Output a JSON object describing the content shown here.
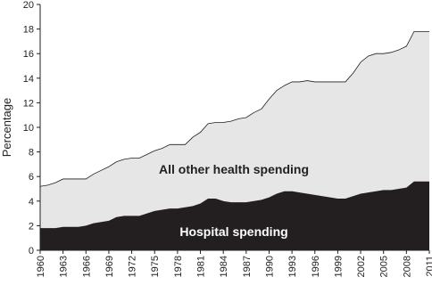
{
  "chart_data": {
    "type": "stacked-area",
    "y_label": "Percentage",
    "x": [
      1960,
      1961,
      1962,
      1963,
      1964,
      1965,
      1966,
      1967,
      1968,
      1969,
      1970,
      1971,
      1972,
      1973,
      1974,
      1975,
      1976,
      1977,
      1978,
      1979,
      1980,
      1981,
      1982,
      1983,
      1984,
      1985,
      1986,
      1987,
      1988,
      1989,
      1990,
      1991,
      1992,
      1993,
      1994,
      1995,
      1996,
      1997,
      1998,
      1999,
      2000,
      2001,
      2002,
      2003,
      2004,
      2005,
      2006,
      2007,
      2008,
      2009,
      2010,
      2011
    ],
    "series": [
      {
        "name": "Hospital spending",
        "color": "#231f20",
        "values": [
          1.8,
          1.8,
          1.8,
          1.9,
          1.9,
          1.9,
          2.0,
          2.2,
          2.3,
          2.4,
          2.7,
          2.8,
          2.8,
          2.8,
          3.0,
          3.2,
          3.3,
          3.4,
          3.4,
          3.5,
          3.6,
          3.8,
          4.2,
          4.2,
          4.0,
          3.9,
          3.9,
          3.9,
          4.0,
          4.1,
          4.3,
          4.6,
          4.8,
          4.8,
          4.7,
          4.6,
          4.5,
          4.4,
          4.3,
          4.2,
          4.2,
          4.4,
          4.6,
          4.7,
          4.8,
          4.9,
          4.9,
          5.0,
          5.1,
          5.6,
          5.6,
          5.6
        ]
      },
      {
        "name": "All other health spending",
        "color": "#e6e6e7",
        "values": [
          3.4,
          3.5,
          3.7,
          3.9,
          3.9,
          3.9,
          3.8,
          4.0,
          4.2,
          4.4,
          4.5,
          4.6,
          4.7,
          4.7,
          4.8,
          4.9,
          5.0,
          5.2,
          5.2,
          5.1,
          5.6,
          5.8,
          6.1,
          6.2,
          6.4,
          6.6,
          6.8,
          6.9,
          7.2,
          7.4,
          8.0,
          8.4,
          8.6,
          8.9,
          9.0,
          9.2,
          9.2,
          9.3,
          9.4,
          9.5,
          9.5,
          10.0,
          10.7,
          11.1,
          11.2,
          11.1,
          11.2,
          11.3,
          11.5,
          12.2,
          12.2,
          12.2
        ]
      }
    ],
    "xlim": [
      1960,
      2011
    ],
    "xticks": [
      1960,
      1963,
      1966,
      1969,
      1972,
      1975,
      1978,
      1981,
      1984,
      1987,
      1990,
      1993,
      1996,
      1999,
      2002,
      2005,
      2008,
      2011
    ],
    "ylim": [
      0,
      20
    ],
    "yticks": [
      0,
      2,
      4,
      6,
      8,
      10,
      12,
      14,
      16,
      18,
      20
    ],
    "grid": false
  }
}
